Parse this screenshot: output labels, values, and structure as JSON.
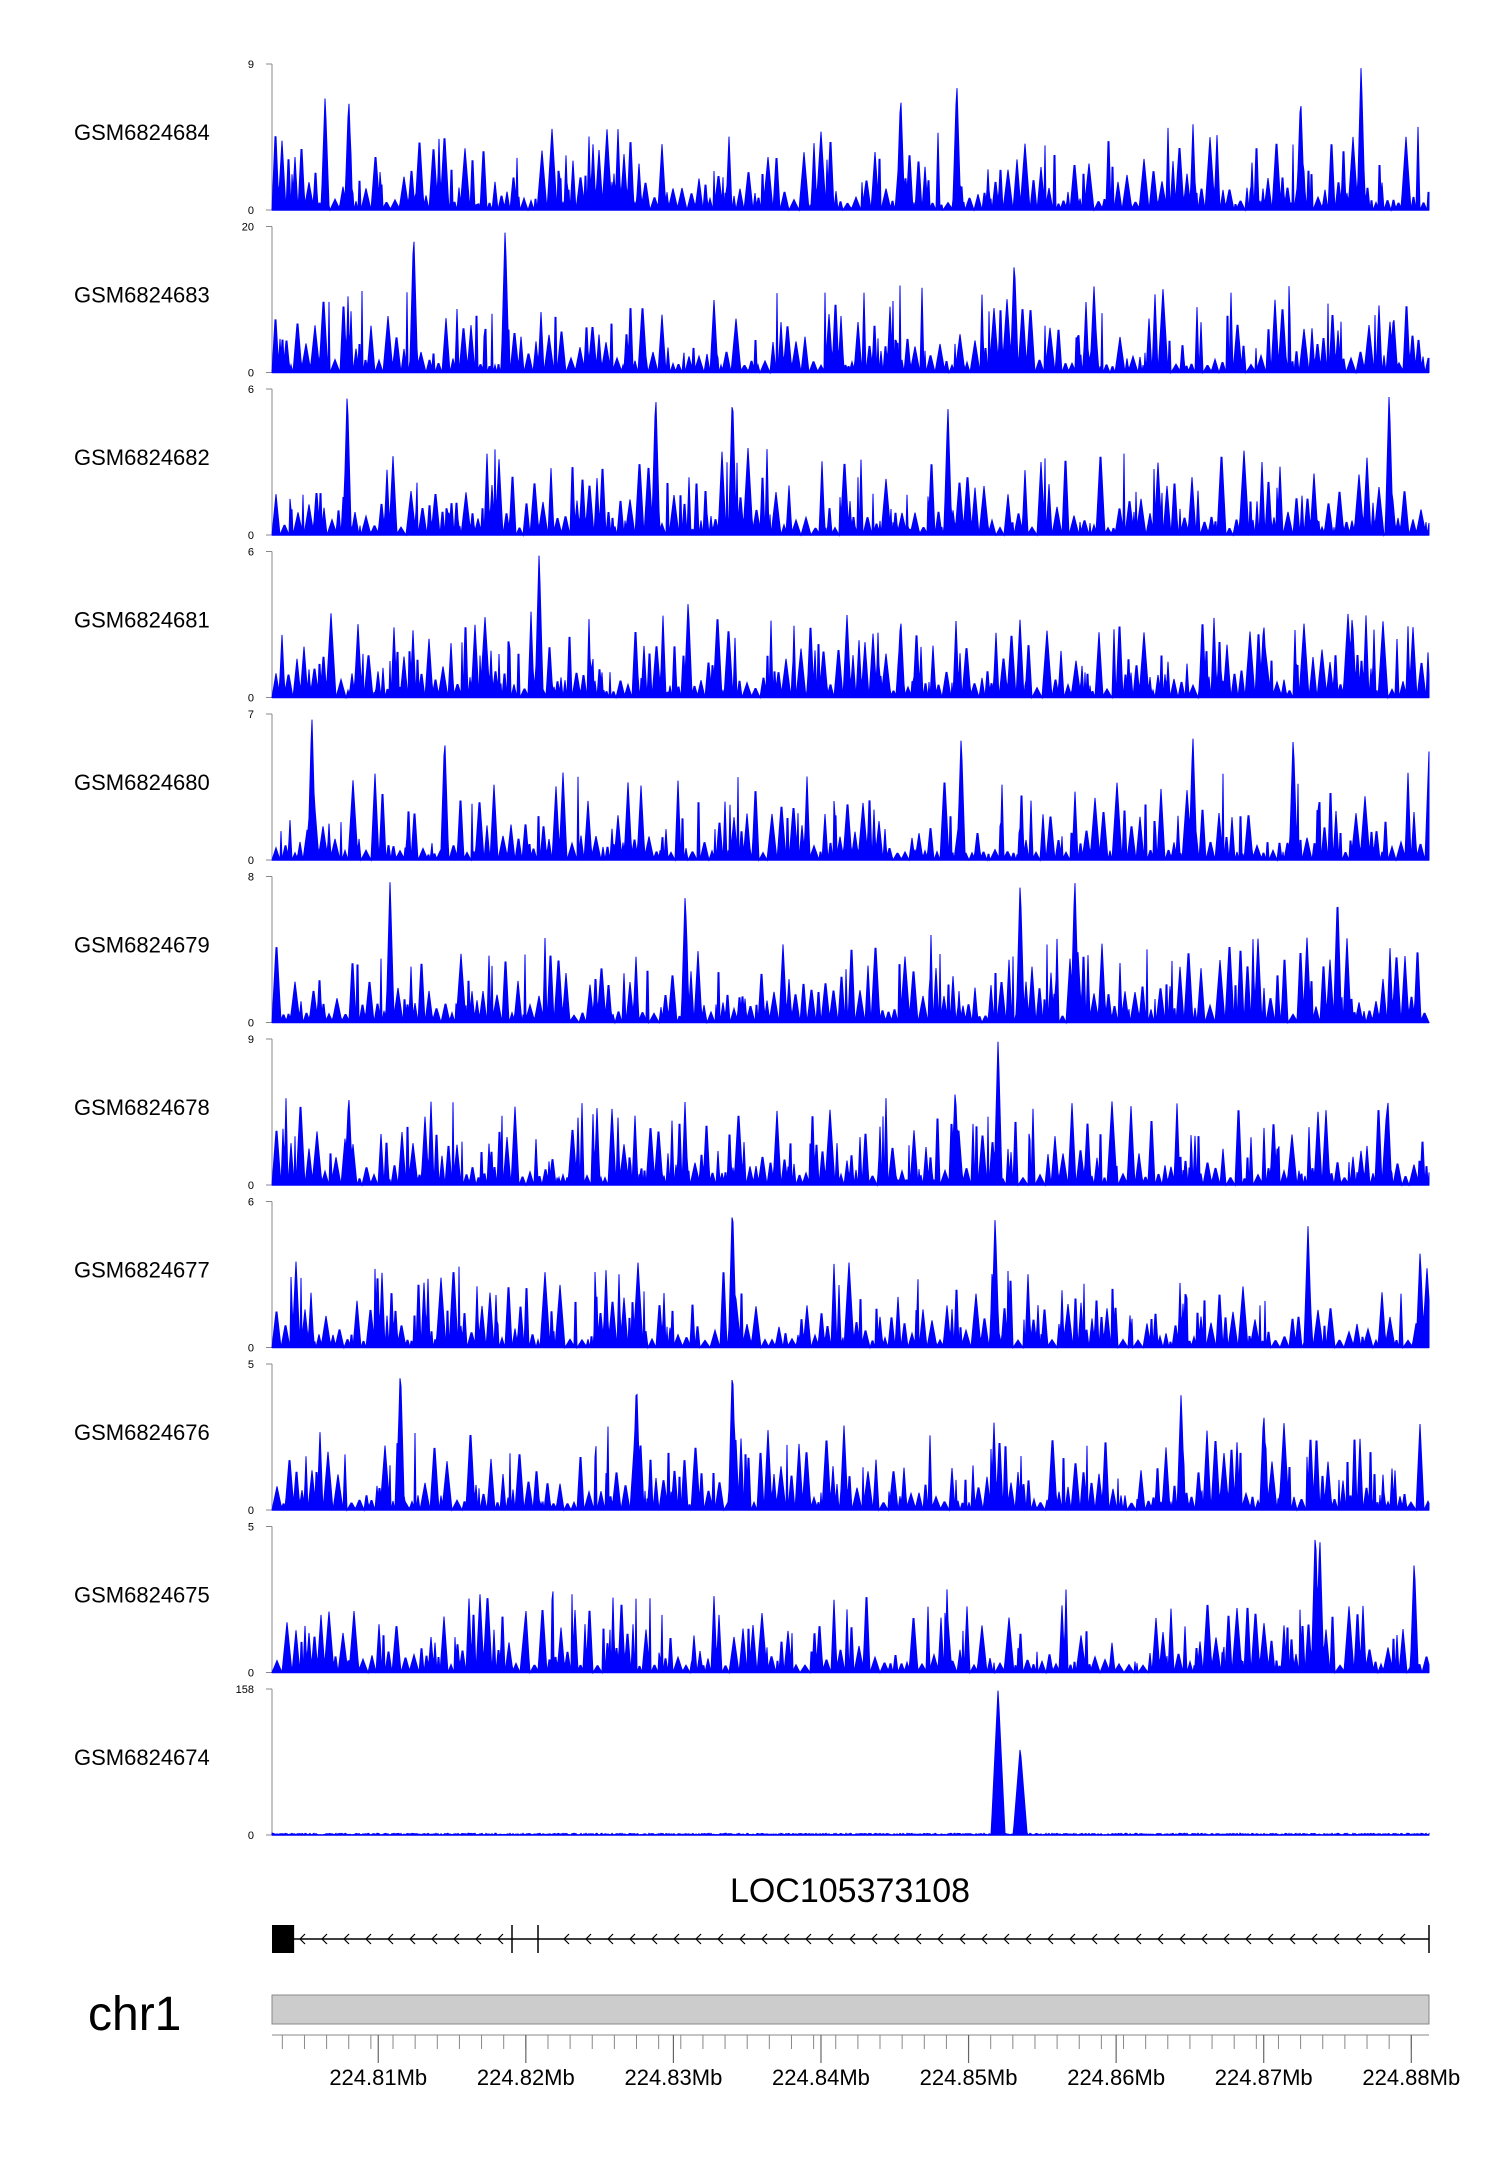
{
  "chart_data": {
    "type": "area",
    "color": "#0000ff",
    "x_range": [
      224.8028,
      224.8812
    ],
    "x_unit": "Mb",
    "tracks": [
      {
        "sample": "GSM6824684",
        "ymax": 9,
        "ymin": 0,
        "peaks": [
          [
            224.8064,
            7.1
          ],
          [
            224.808,
            7.0
          ],
          [
            224.8454,
            7.2
          ],
          [
            224.8492,
            8.0
          ],
          [
            224.8725,
            7.1
          ],
          [
            224.8766,
            9.0
          ]
        ]
      },
      {
        "sample": "GSM6824683",
        "ymax": 20,
        "ymin": 0,
        "peaks": [
          [
            224.8124,
            19.5
          ],
          [
            224.8186,
            20.0
          ],
          [
            224.8531,
            15.6
          ],
          [
            224.8585,
            11.8
          ],
          [
            224.8788,
            8.0
          ]
        ]
      },
      {
        "sample": "GSM6824682",
        "ymax": 6,
        "ymin": 0,
        "peaks": [
          [
            224.8079,
            6.0
          ],
          [
            224.8288,
            5.9
          ],
          [
            224.834,
            5.9
          ],
          [
            224.8486,
            5.3
          ],
          [
            224.8785,
            5.9
          ]
        ]
      },
      {
        "sample": "GSM6824681",
        "ymax": 6,
        "ymin": 0,
        "peaks": [
          [
            224.8209,
            6.0
          ],
          [
            224.831,
            4.0
          ],
          [
            224.8454,
            3.3
          ],
          [
            224.87,
            3.1
          ],
          [
            224.876,
            3.4
          ]
        ]
      },
      {
        "sample": "GSM6824680",
        "ymax": 7,
        "ymin": 0,
        "peaks": [
          [
            224.8055,
            7.0
          ],
          [
            224.8145,
            6.0
          ],
          [
            224.8495,
            6.0
          ],
          [
            224.8652,
            6.0
          ],
          [
            224.872,
            6.0
          ],
          [
            224.8812,
            5.2
          ]
        ]
      },
      {
        "sample": "GSM6824679",
        "ymax": 8,
        "ymin": 0,
        "peaks": [
          [
            224.8108,
            7.8
          ],
          [
            224.8308,
            7.2
          ],
          [
            224.8535,
            7.8
          ],
          [
            224.8572,
            8.0
          ],
          [
            224.875,
            7.2
          ]
        ]
      },
      {
        "sample": "GSM6824678",
        "ymax": 9,
        "ymin": 0,
        "peaks": [
          [
            224.808,
            5.6
          ],
          [
            224.8491,
            6.0
          ],
          [
            224.852,
            9.0
          ],
          [
            224.8784,
            5.5
          ]
        ]
      },
      {
        "sample": "GSM6824677",
        "ymax": 6,
        "ymin": 0,
        "peaks": [
          [
            224.834,
            6.0
          ],
          [
            224.8518,
            5.4
          ],
          [
            224.873,
            5.0
          ],
          [
            224.8806,
            4.0
          ]
        ]
      },
      {
        "sample": "GSM6824676",
        "ymax": 5,
        "ymin": 0,
        "peaks": [
          [
            224.8115,
            5.0
          ],
          [
            224.8275,
            4.5
          ],
          [
            224.834,
            5.0
          ],
          [
            224.8644,
            4.0
          ],
          [
            224.87,
            3.4
          ]
        ]
      },
      {
        "sample": "GSM6824675",
        "ymax": 5,
        "ymin": 0,
        "peaks": [
          [
            224.82,
            2.2
          ],
          [
            224.8486,
            1.8
          ],
          [
            224.8735,
            5.0
          ],
          [
            224.8738,
            4.7
          ],
          [
            224.8802,
            3.9
          ]
        ]
      },
      {
        "sample": "GSM6824674",
        "ymax": 158,
        "ymin": 0,
        "peaks": [
          [
            224.852,
            158
          ],
          [
            224.8535,
            95
          ]
        ]
      }
    ],
    "gene": {
      "name": "LOC105373108",
      "strand": "-",
      "exon_start": 224.8028,
      "exon_end": 224.8043
    },
    "chromosome": "chr1",
    "axis_ticks": [
      "224.81Mb",
      "224.82Mb",
      "224.83Mb",
      "224.84Mb",
      "224.85Mb",
      "224.86Mb",
      "224.87Mb",
      "224.88Mb"
    ],
    "axis_tick_values": [
      224.81,
      224.82,
      224.83,
      224.84,
      224.85,
      224.86,
      224.87,
      224.88
    ]
  }
}
